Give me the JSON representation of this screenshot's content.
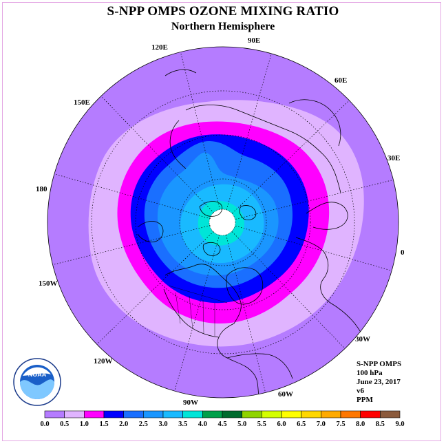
{
  "title": "S-NPP OMPS OZONE MIXING RATIO",
  "subtitle": "Northern Hemisphere",
  "longitude_labels": [
    "90E",
    "60E",
    "30E",
    "0",
    "30W",
    "60W",
    "90W",
    "120W",
    "150W",
    "180",
    "150E",
    "120E"
  ],
  "info": {
    "instrument": "S-NPP OMPS",
    "level": "100 hPa",
    "date": "June 23, 2017",
    "version": "v6",
    "units": "PPM"
  },
  "logo": {
    "text": "NOAA"
  },
  "colorbar": {
    "labels": [
      "0.0",
      "0.5",
      "1.0",
      "1.5",
      "2.0",
      "2.5",
      "3.0",
      "3.5",
      "4.0",
      "4.5",
      "5.0",
      "5.5",
      "6.0",
      "6.5",
      "7.0",
      "7.5",
      "8.0",
      "8.5",
      "9.0"
    ],
    "colors": [
      "#b57cff",
      "#e0b4ff",
      "#ff00ff",
      "#0000ff",
      "#1a6fff",
      "#1a96ff",
      "#19baff",
      "#00e5d8",
      "#00a04a",
      "#006b2e",
      "#8fd400",
      "#d4ff00",
      "#ffff00",
      "#ffd700",
      "#ffaa00",
      "#ff7700",
      "#ff0000",
      "#8b5a3c"
    ]
  }
}
